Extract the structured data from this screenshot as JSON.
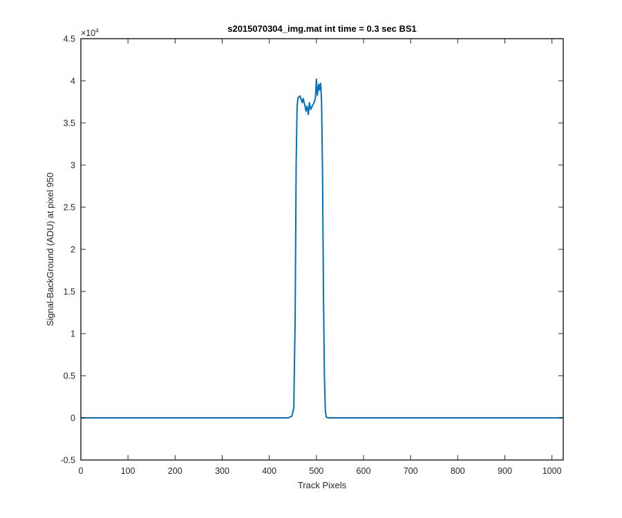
{
  "chart_data": {
    "type": "line",
    "title": "s2015070304_img.mat int time = 0.3 sec   BS1",
    "xlabel": "Track Pixels",
    "ylabel": "Signal-BackGround (ADU) at pixel 950",
    "xlim": [
      0,
      1024
    ],
    "ylim": [
      -5000,
      45000
    ],
    "x_ticks": [
      0,
      100,
      200,
      300,
      400,
      500,
      600,
      700,
      800,
      900,
      1000
    ],
    "x_tick_labels": [
      "0",
      "100",
      "200",
      "300",
      "400",
      "500",
      "600",
      "700",
      "800",
      "900",
      "1000"
    ],
    "y_ticks": [
      -5000,
      0,
      5000,
      10000,
      15000,
      20000,
      25000,
      30000,
      35000,
      40000,
      45000
    ],
    "y_tick_labels": [
      "-0.5",
      "0",
      "0.5",
      "1",
      "1.5",
      "2",
      "2.5",
      "3",
      "3.5",
      "4",
      "4.5"
    ],
    "y_exponent_label": "×10",
    "y_exponent_power": "4",
    "grid": false,
    "line_color": "#0072BD",
    "series": [
      {
        "x": [
          0,
          100,
          200,
          300,
          400,
          440,
          448,
          452,
          455,
          457,
          459,
          461,
          465,
          470,
          472,
          475,
          478,
          480,
          483,
          485,
          488,
          491,
          495,
          498,
          500,
          502,
          505,
          507,
          509,
          511,
          513,
          515,
          517,
          519,
          521,
          525,
          540,
          600,
          700,
          800,
          900,
          1024
        ],
        "y": [
          0,
          0,
          0,
          0,
          0,
          0,
          200,
          1200,
          12000,
          30000,
          37000,
          38000,
          38200,
          37400,
          37900,
          37200,
          36400,
          37000,
          36000,
          37400,
          36600,
          37000,
          37400,
          38000,
          40200,
          38300,
          39600,
          38900,
          39700,
          37500,
          29000,
          15000,
          5000,
          800,
          100,
          0,
          0,
          0,
          0,
          0,
          0,
          0
        ]
      }
    ]
  }
}
